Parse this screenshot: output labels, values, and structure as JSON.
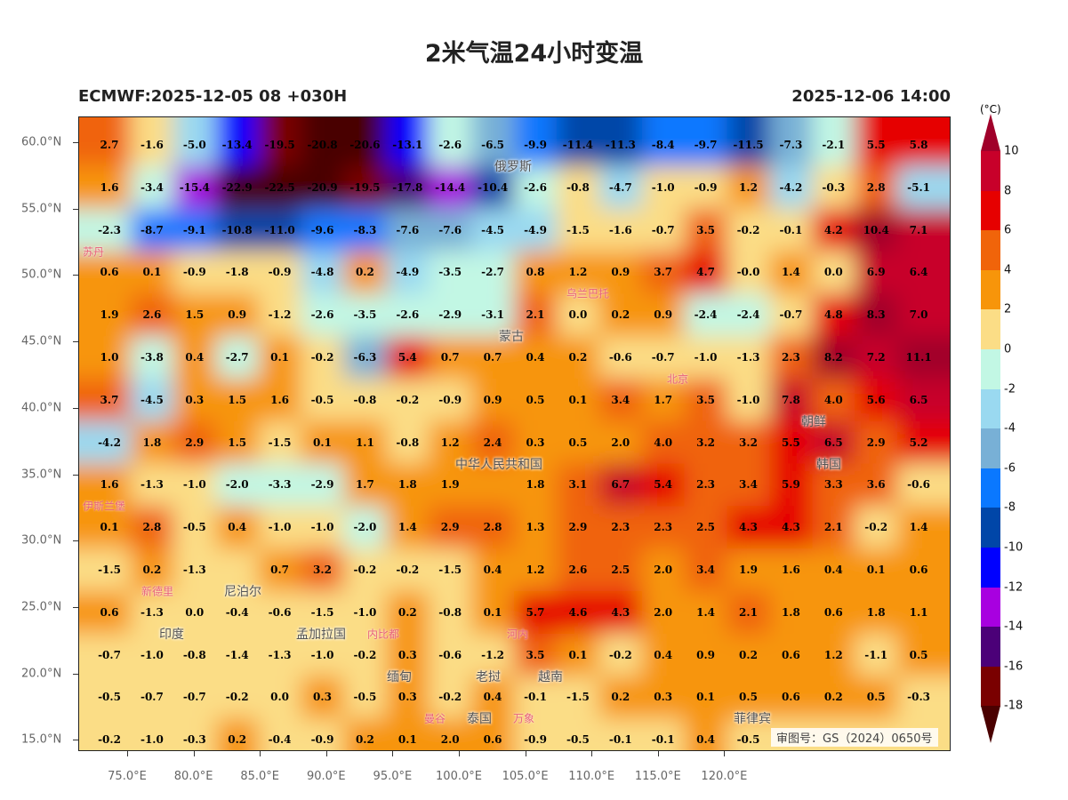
{
  "title": "2米气温24小时变温",
  "model_run": "ECMWF:2025-12-05 08 +030H",
  "valid_time": "2025-12-06 14:00",
  "colorbar": {
    "unit": "(°C)",
    "levels": [
      "10",
      "8",
      "6",
      "4",
      "2",
      "0",
      "-2",
      "-4",
      "-6",
      "-8",
      "-10",
      "-12",
      "-14",
      "-16",
      "-18"
    ],
    "colors": [
      "#a0002a",
      "#c8002a",
      "#e60000",
      "#f0640a",
      "#f7950a",
      "#fbdd86",
      "#c2f7e4",
      "#9ad9f0",
      "#78b0d6",
      "#0a78ff",
      "#0046a8",
      "#0000ff",
      "#a800e0",
      "#4b0078",
      "#7a0000",
      "#4a0000"
    ]
  },
  "lat_ticks": [
    "60.0°N",
    "55.0°N",
    "50.0°N",
    "45.0°N",
    "40.0°N",
    "35.0°N",
    "30.0°N",
    "25.0°N",
    "20.0°N",
    "15.0°N"
  ],
  "lon_ticks": [
    "75.0°E",
    "80.0°E",
    "85.0°E",
    "90.0°E",
    "95.0°E",
    "100.0°E",
    "105.0°E",
    "110.0°E",
    "115.0°E",
    "120.0°E"
  ],
  "grid_values": [
    [
      "2.7",
      "-1.6",
      "-5.0",
      "-13.4",
      "-19.5",
      "-20.8",
      "-20.6",
      "-13.1",
      "-2.6",
      "-6.5",
      "-9.9",
      "-11.4",
      "-11.3",
      "-8.4",
      "-9.7",
      "-11.5",
      "-7.3",
      "-2.1",
      "5.5",
      "5.8"
    ],
    [
      "1.6",
      "-3.4",
      "-15.4",
      "-22.9",
      "-22.5",
      "-20.9",
      "-19.5",
      "-17.8",
      "-14.4",
      "-10.4",
      "-2.6",
      "-0.8",
      "-4.7",
      "-1.0",
      "-0.9",
      "1.2",
      "-4.2",
      "-0.3",
      "2.8",
      "-5.1"
    ],
    [
      "-2.3",
      "-8.7",
      "-9.1",
      "-10.8",
      "-11.0",
      "-9.6",
      "-8.3",
      "-7.6",
      "-7.6",
      "-4.5",
      "-4.9",
      "-1.5",
      "-1.6",
      "-0.7",
      "3.5",
      "-0.2",
      "-0.1",
      "4.2",
      "10.4",
      "7.1"
    ],
    [
      "0.6",
      "0.1",
      "-0.9",
      "-1.8",
      "-0.9",
      "-4.8",
      "0.2",
      "-4.9",
      "-3.5",
      "-2.7",
      "0.8",
      "1.2",
      "0.9",
      "3.7",
      "4.7",
      "-0.0",
      "1.4",
      "0.0",
      "6.9",
      "6.4"
    ],
    [
      "1.9",
      "2.6",
      "1.5",
      "0.9",
      "-1.2",
      "-2.6",
      "-3.5",
      "-2.6",
      "-2.9",
      "-3.1",
      "2.1",
      "0.0",
      "0.2",
      "0.9",
      "-2.4",
      "-2.4",
      "-0.7",
      "4.8",
      "8.3",
      "7.0"
    ],
    [
      "1.0",
      "-3.8",
      "0.4",
      "-2.7",
      "0.1",
      "-0.2",
      "-6.3",
      "5.4",
      "0.7",
      "0.7",
      "0.4",
      "0.2",
      "-0.6",
      "-0.7",
      "-1.0",
      "-1.3",
      "2.3",
      "8.2",
      "7.2",
      "11.1"
    ],
    [
      "3.7",
      "-4.5",
      "0.3",
      "1.5",
      "1.6",
      "-0.5",
      "-0.8",
      "-0.2",
      "-0.9",
      "0.9",
      "0.5",
      "0.1",
      "3.4",
      "1.7",
      "3.5",
      "-1.0",
      "7.8",
      "4.0",
      "5.6",
      "6.5"
    ],
    [
      "-4.2",
      "1.8",
      "2.9",
      "1.5",
      "-1.5",
      "0.1",
      "1.1",
      "-0.8",
      "1.2",
      "2.4",
      "0.3",
      "0.5",
      "2.0",
      "4.0",
      "3.2",
      "3.2",
      "5.5",
      "6.5",
      "2.9",
      "5.2"
    ],
    [
      "1.6",
      "-1.3",
      "-1.0",
      "-2.0",
      "-3.3",
      "-2.9",
      "1.7",
      "1.8",
      "1.9",
      null,
      "1.8",
      "3.1",
      "6.7",
      "5.4",
      "2.3",
      "3.4",
      "5.9",
      "3.3",
      "3.6",
      "-0.6"
    ],
    [
      "0.1",
      "2.8",
      "-0.5",
      "0.4",
      "-1.0",
      "-1.0",
      "-2.0",
      "1.4",
      "2.9",
      "2.8",
      "1.3",
      "2.9",
      "2.3",
      "2.3",
      "2.5",
      "4.3",
      "4.3",
      "2.1",
      "-0.2",
      "1.4"
    ],
    [
      "-1.5",
      "0.2",
      "-1.3",
      null,
      "0.7",
      "3.2",
      "-0.2",
      "-0.2",
      "-1.5",
      "0.4",
      "1.2",
      "2.6",
      "2.5",
      "2.0",
      "3.4",
      "1.9",
      "1.6",
      "0.4",
      "0.1",
      "0.6"
    ],
    [
      "0.6",
      "-1.3",
      "0.0",
      "-0.4",
      "-0.6",
      "-1.5",
      "-1.0",
      "0.2",
      "-0.8",
      "0.1",
      "5.7",
      "4.6",
      "4.3",
      "2.0",
      "1.4",
      "2.1",
      "1.8",
      "0.6",
      "1.8",
      "1.1"
    ],
    [
      "-0.7",
      "-1.0",
      "-0.8",
      "-1.4",
      "-1.3",
      "-1.0",
      "-0.2",
      "0.3",
      "-0.6",
      "-1.2",
      "3.5",
      "0.1",
      "-0.2",
      "0.4",
      "0.9",
      "0.2",
      "0.6",
      "1.2",
      "-1.1",
      "0.5"
    ],
    [
      "-0.5",
      "-0.7",
      "-0.7",
      "-0.2",
      "0.0",
      "0.3",
      "-0.5",
      "0.3",
      "-0.2",
      "0.4",
      "-0.1",
      "-1.5",
      "0.2",
      "0.3",
      "0.1",
      "0.5",
      "0.6",
      "0.2",
      "0.5",
      "-0.3"
    ],
    [
      "-0.2",
      "-1.0",
      "-0.3",
      "0.2",
      "-0.4",
      "-0.9",
      "0.2",
      "0.1",
      "2.0",
      "0.6",
      "-0.9",
      "-0.5",
      "-0.1",
      "-0.1",
      "0.4",
      "-0.5",
      null,
      null,
      null,
      null
    ]
  ],
  "places": [
    {
      "name": "俄罗斯",
      "kind": "country"
    },
    {
      "name": "蒙古",
      "kind": "country"
    },
    {
      "name": "中华人民共和国",
      "kind": "country"
    },
    {
      "name": "朝鲜",
      "kind": "country"
    },
    {
      "name": "韩国",
      "kind": "country"
    },
    {
      "name": "尼泊尔",
      "kind": "country"
    },
    {
      "name": "印度",
      "kind": "country"
    },
    {
      "name": "孟加拉国",
      "kind": "country"
    },
    {
      "name": "缅甸",
      "kind": "country"
    },
    {
      "name": "老挝",
      "kind": "country"
    },
    {
      "name": "越南",
      "kind": "country"
    },
    {
      "name": "泰国",
      "kind": "country"
    },
    {
      "name": "菲律宾",
      "kind": "country"
    },
    {
      "name": "苏丹",
      "kind": "city"
    },
    {
      "name": "乌兰巴托",
      "kind": "city"
    },
    {
      "name": "北京",
      "kind": "city"
    },
    {
      "name": "伊斯兰堡",
      "kind": "city"
    },
    {
      "name": "新德里",
      "kind": "city"
    },
    {
      "name": "内比都",
      "kind": "city"
    },
    {
      "name": "河内",
      "kind": "city"
    },
    {
      "name": "万象",
      "kind": "city"
    },
    {
      "name": "曼谷",
      "kind": "city"
    }
  ],
  "watermark": "审图号：GS（2024）0650号"
}
